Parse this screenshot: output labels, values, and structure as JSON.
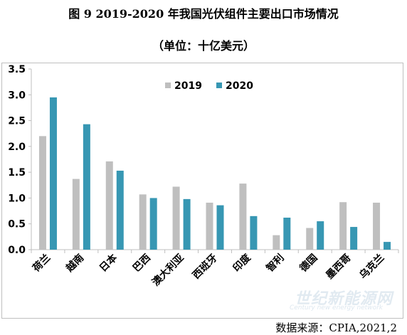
{
  "title": "图 9  2019-2020 年我国光伏组件主要出口市场情况",
  "subtitle": "（单位：十亿美元）",
  "source": "数据来源：CPIA,2021,2",
  "watermark": {
    "logo_text": "世纪新能源网",
    "tagline": "Century new energy network"
  },
  "colors": {
    "s2019": "#bfbfbf",
    "s2020": "#3797b3",
    "axis": "#bfbfbf"
  },
  "chart_data": {
    "type": "bar",
    "categories": [
      "荷兰",
      "越南",
      "日本",
      "巴西",
      "澳大利亚",
      "西班牙",
      "印度",
      "智利",
      "德国",
      "墨西哥",
      "乌克兰"
    ],
    "series": [
      {
        "name": "2019",
        "values": [
          2.2,
          1.37,
          1.71,
          1.07,
          1.22,
          0.91,
          1.28,
          0.28,
          0.42,
          0.92,
          0.91
        ]
      },
      {
        "name": "2020",
        "values": [
          2.95,
          2.43,
          1.53,
          1.0,
          0.98,
          0.86,
          0.65,
          0.62,
          0.55,
          0.44,
          0.15
        ]
      }
    ],
    "ylim": [
      0,
      3.5
    ],
    "yticks": [
      "0.0",
      "0.5",
      "1.0",
      "1.5",
      "2.0",
      "2.5",
      "3.0",
      "3.5"
    ],
    "legend_position": "top-center",
    "grid": false
  }
}
